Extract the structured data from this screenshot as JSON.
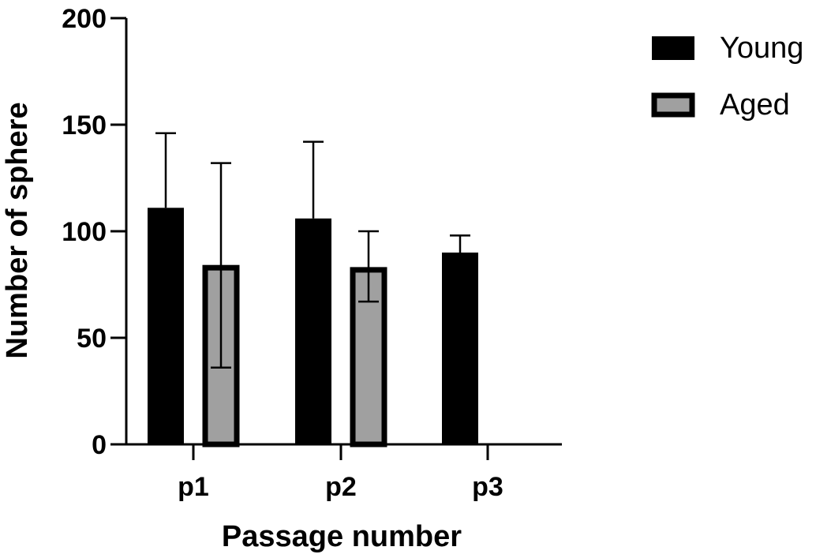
{
  "chart_data": {
    "type": "bar",
    "title": "",
    "xlabel": "Passage number",
    "ylabel": "Number of sphere",
    "categories": [
      "p1",
      "p2",
      "p3"
    ],
    "ylim": [
      0,
      200
    ],
    "yticks": [
      0,
      50,
      100,
      150,
      200
    ],
    "grid": false,
    "legend_position": "top-right",
    "series": [
      {
        "name": "Young",
        "color": "#000000",
        "edge_color": "#000000",
        "values": [
          111,
          106,
          90
        ],
        "error_upper": [
          146,
          142,
          98
        ]
      },
      {
        "name": "Aged",
        "color": "#a0a0a0",
        "edge_color": "#000000",
        "values": [
          84,
          83,
          null
        ],
        "error_upper": [
          132,
          100,
          null
        ],
        "error_lower": [
          36,
          67,
          null
        ]
      }
    ]
  }
}
